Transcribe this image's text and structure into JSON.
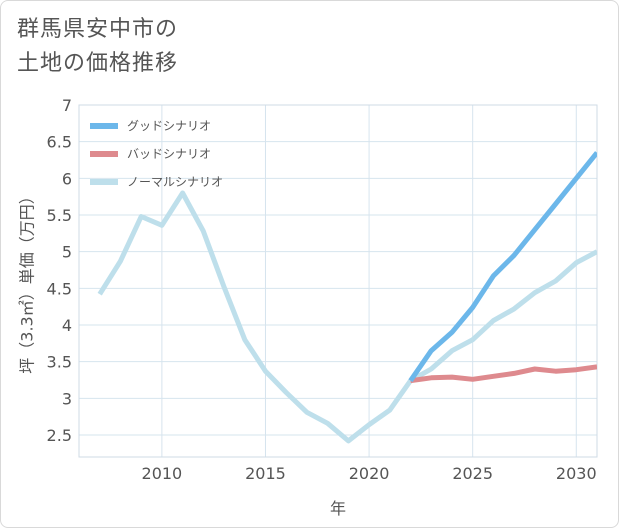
{
  "title_lines": [
    "群馬県安中市の",
    "土地の価格推移"
  ],
  "colors": {
    "good": "#6cb7ea",
    "bad": "#de8a8e",
    "normal": "#bedfeb",
    "grid": "#d6e4ee",
    "text": "#555555"
  },
  "chart_data": {
    "type": "line",
    "title": "群馬県安中市の土地の価格推移",
    "xlabel": "年",
    "ylabel": "坪（3.3㎡）単価（万円）",
    "xlim": [
      2006,
      2031
    ],
    "ylim": [
      2.2,
      7
    ],
    "xticks": [
      2010,
      2015,
      2020,
      2025,
      2030
    ],
    "yticks": [
      2.5,
      3,
      3.5,
      4,
      4.5,
      5,
      5.5,
      6,
      6.5,
      7
    ],
    "xtick_labels": [
      "2010",
      "2015",
      "2020",
      "2025",
      "2030"
    ],
    "ytick_labels": [
      "2.5",
      "3",
      "3.5",
      "4",
      "4.5",
      "5",
      "5.5",
      "6",
      "6.5",
      "7"
    ],
    "legend_position": "top-left",
    "series": [
      {
        "name": "グッドシナリオ",
        "color_key": "good",
        "x": [
          2022,
          2023,
          2024,
          2025,
          2026,
          2027,
          2028,
          2029,
          2030,
          2031
        ],
        "y": [
          3.24,
          3.65,
          3.9,
          4.24,
          4.67,
          4.95,
          5.3,
          5.65,
          6.0,
          6.35
        ]
      },
      {
        "name": "バッドシナリオ",
        "color_key": "bad",
        "x": [
          2022,
          2023,
          2024,
          2025,
          2026,
          2027,
          2028,
          2029,
          2030,
          2031
        ],
        "y": [
          3.24,
          3.28,
          3.29,
          3.26,
          3.3,
          3.34,
          3.4,
          3.37,
          3.39,
          3.43
        ]
      },
      {
        "name": "ノーマルシナリオ",
        "color_key": "normal",
        "x": [
          2007,
          2008,
          2009,
          2010,
          2011,
          2012,
          2013,
          2014,
          2015,
          2016,
          2017,
          2018,
          2019,
          2020,
          2021,
          2022,
          2023,
          2024,
          2025,
          2026,
          2027,
          2028,
          2029,
          2030,
          2031
        ],
        "y": [
          4.42,
          4.87,
          5.48,
          5.36,
          5.8,
          5.28,
          4.52,
          3.8,
          3.37,
          3.08,
          2.81,
          2.66,
          2.42,
          2.64,
          2.84,
          3.24,
          3.4,
          3.65,
          3.8,
          4.06,
          4.22,
          4.44,
          4.6,
          4.85,
          5.0
        ]
      }
    ]
  }
}
